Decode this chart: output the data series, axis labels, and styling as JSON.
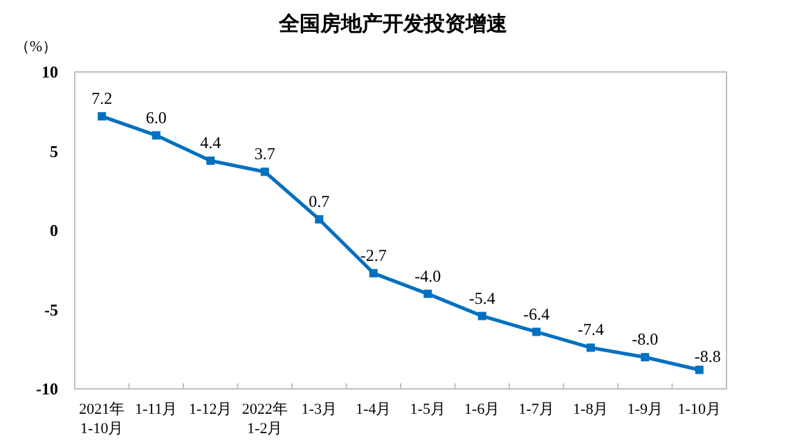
{
  "chart_data": {
    "type": "line",
    "title": "全国房地产开发投资增速",
    "ylabel": "（%）",
    "categories": [
      "2021年\n1-10月",
      "1-11月",
      "1-12月",
      "2022年\n1-2月",
      "1-3月",
      "1-4月",
      "1-5月",
      "1-6月",
      "1-7月",
      "1-8月",
      "1-9月",
      "1-10月"
    ],
    "series": [
      {
        "color": "#0070c0",
        "values": [
          7.2,
          6.0,
          4.4,
          3.7,
          0.7,
          -2.7,
          -4.0,
          -5.4,
          -6.4,
          -7.4,
          -8.0,
          -8.8
        ],
        "value_labels": [
          "7.2",
          "6.0",
          "4.4",
          "3.7",
          "0.7",
          "-2.7",
          "-4.0",
          "-5.4",
          "-6.4",
          "-7.4",
          "-8.0",
          "-8.8"
        ]
      }
    ],
    "ylim": [
      -10,
      10
    ],
    "yticks": [
      -10,
      -5,
      0,
      5,
      10
    ],
    "marker": "square",
    "line_style": "solid",
    "grid": false
  }
}
